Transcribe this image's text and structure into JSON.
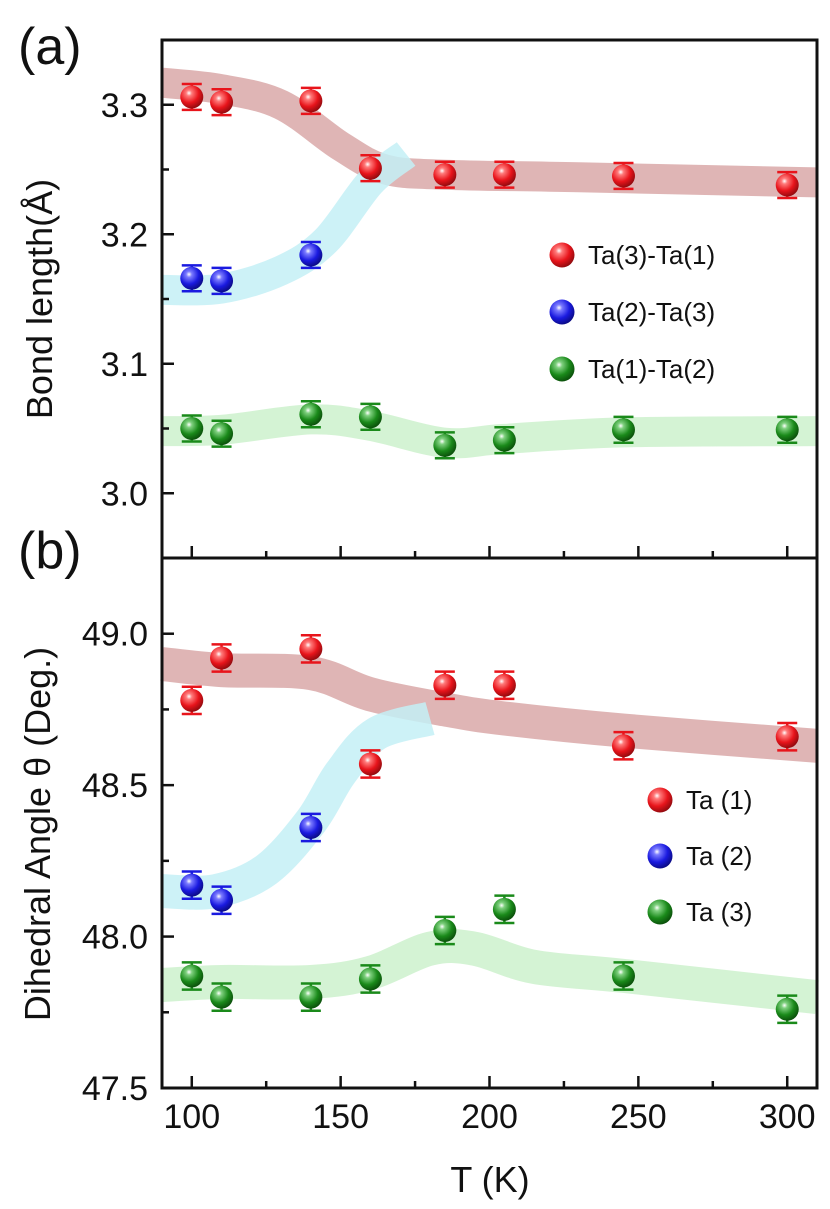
{
  "figure": {
    "x_axis_label": "T (K)",
    "x_ticks": [
      "100",
      "150",
      "200",
      "250",
      "300"
    ],
    "xlim": [
      90,
      310
    ]
  },
  "chart_data": [
    {
      "type": "scatter",
      "panel_label": "(a)",
      "ylabel": "Bond length(Å)",
      "xlabel": "T (K)",
      "ylim": [
        2.95,
        3.35
      ],
      "y_ticks": [
        "3.0",
        "3.1",
        "3.2",
        "3.3"
      ],
      "y_tick_values": [
        3.0,
        3.1,
        3.2,
        3.3
      ],
      "legend_position": "right",
      "series": [
        {
          "name": "Ta(3)-Ta(1)",
          "color": "#e8141b",
          "x": [
            100,
            110,
            140,
            160,
            185,
            205,
            245,
            300
          ],
          "y": [
            3.306,
            3.302,
            3.303,
            3.251,
            3.246,
            3.246,
            3.245,
            3.238
          ],
          "err": 0.01
        },
        {
          "name": "Ta(2)-Ta(3)",
          "color": "#1a1ae0",
          "x": [
            100,
            110,
            140
          ],
          "y": [
            3.166,
            3.164,
            3.184
          ],
          "err": 0.01
        },
        {
          "name": "Ta(1)-Ta(2)",
          "color": "#1a8a1a",
          "x": [
            100,
            110,
            140,
            160,
            185,
            205,
            245,
            300
          ],
          "y": [
            3.05,
            3.046,
            3.061,
            3.059,
            3.037,
            3.041,
            3.049,
            3.049
          ],
          "err": 0.01
        }
      ],
      "guide_bands": [
        {
          "color": "#d9a8a8",
          "x": [
            90,
            110,
            130,
            150,
            165,
            185,
            230,
            310
          ],
          "y": [
            3.317,
            3.312,
            3.3,
            3.268,
            3.25,
            3.246,
            3.244,
            3.24
          ]
        },
        {
          "color": "#c4f0f6",
          "x": [
            90,
            110,
            130,
            145,
            160,
            172
          ],
          "y": [
            3.157,
            3.158,
            3.172,
            3.195,
            3.24,
            3.262
          ]
        },
        {
          "color": "#cdf1cd",
          "x": [
            90,
            110,
            140,
            160,
            185,
            205,
            245,
            310
          ],
          "y": [
            3.048,
            3.049,
            3.057,
            3.052,
            3.039,
            3.042,
            3.047,
            3.048
          ]
        }
      ]
    },
    {
      "type": "scatter",
      "panel_label": "(b)",
      "ylabel": "Dihedral Angle θ (Deg.)",
      "xlabel": "T (K)",
      "ylim": [
        47.5,
        49.25
      ],
      "y_ticks": [
        "47.5",
        "48.0",
        "48.5",
        "49.0"
      ],
      "y_tick_values": [
        47.5,
        48.0,
        48.5,
        49.0
      ],
      "legend_position": "bottom-right",
      "series": [
        {
          "name": "Ta (1)",
          "color": "#e8141b",
          "x": [
            100,
            110,
            140,
            160,
            185,
            205,
            245,
            300
          ],
          "y": [
            48.78,
            48.92,
            48.95,
            48.57,
            48.83,
            48.83,
            48.63,
            48.66
          ],
          "err": 0.045
        },
        {
          "name": "Ta (2)",
          "color": "#1a1ae0",
          "x": [
            100,
            110,
            140
          ],
          "y": [
            48.17,
            48.12,
            48.36
          ],
          "err": 0.045
        },
        {
          "name": "Ta (3)",
          "color": "#1a8a1a",
          "x": [
            100,
            110,
            140,
            160,
            185,
            205,
            245,
            300
          ],
          "y": [
            47.87,
            47.8,
            47.8,
            47.86,
            48.02,
            48.09,
            47.87,
            47.76
          ],
          "err": 0.045
        }
      ],
      "guide_bands": [
        {
          "color": "#d9a8a8",
          "x": [
            90,
            110,
            140,
            160,
            185,
            205,
            245,
            310
          ],
          "y": [
            48.9,
            48.88,
            48.87,
            48.8,
            48.75,
            48.72,
            48.68,
            48.63
          ]
        },
        {
          "color": "#c4f0f6",
          "x": [
            90,
            108,
            125,
            140,
            150,
            162,
            180
          ],
          "y": [
            48.15,
            48.15,
            48.22,
            48.38,
            48.54,
            48.67,
            48.72
          ]
        },
        {
          "color": "#cdf1cd",
          "x": [
            90,
            110,
            140,
            160,
            180,
            195,
            215,
            245,
            310
          ],
          "y": [
            47.84,
            47.85,
            47.85,
            47.88,
            47.96,
            47.96,
            47.9,
            47.87,
            47.8
          ]
        }
      ]
    }
  ]
}
